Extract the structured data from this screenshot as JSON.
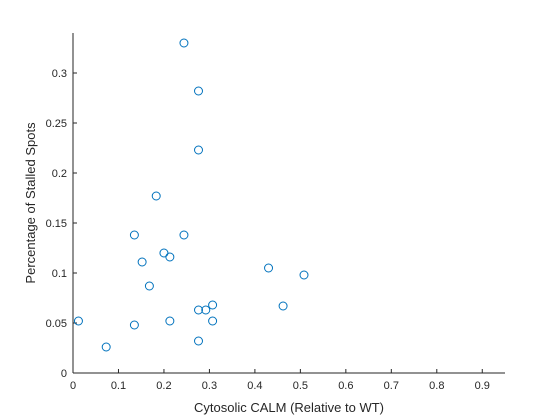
{
  "chart_data": {
    "type": "scatter",
    "xlabel": "Cytosolic CALM (Relative to WT)",
    "ylabel": "Percentage of Stalled Spots",
    "xlim": [
      0,
      0.95
    ],
    "ylim": [
      0,
      0.34
    ],
    "xticks": [
      0,
      0.1,
      0.2,
      0.3,
      0.4,
      0.5,
      0.6,
      0.7,
      0.8,
      0.9
    ],
    "xtick_labels": [
      "0",
      "0.1",
      "0.2",
      "0.3",
      "0.4",
      "0.5",
      "0.6",
      "0.7",
      "0.8",
      "0.9"
    ],
    "yticks": [
      0,
      0.05,
      0.1,
      0.15,
      0.2,
      0.25,
      0.3
    ],
    "ytick_labels": [
      "0",
      "0.05",
      "0.1",
      "0.15",
      "0.2",
      "0.25",
      "0.3"
    ],
    "grid": false,
    "marker_color": "#0072BD",
    "series": [
      {
        "marker": "circle-open",
        "points": [
          {
            "x": 0.012,
            "y": 0.052
          },
          {
            "x": 0.073,
            "y": 0.026
          },
          {
            "x": 0.135,
            "y": 0.138
          },
          {
            "x": 0.135,
            "y": 0.048
          },
          {
            "x": 0.152,
            "y": 0.111
          },
          {
            "x": 0.168,
            "y": 0.087
          },
          {
            "x": 0.183,
            "y": 0.177
          },
          {
            "x": 0.2,
            "y": 0.12
          },
          {
            "x": 0.213,
            "y": 0.116
          },
          {
            "x": 0.213,
            "y": 0.052
          },
          {
            "x": 0.244,
            "y": 0.33
          },
          {
            "x": 0.244,
            "y": 0.138
          },
          {
            "x": 0.276,
            "y": 0.282
          },
          {
            "x": 0.276,
            "y": 0.223
          },
          {
            "x": 0.276,
            "y": 0.063
          },
          {
            "x": 0.276,
            "y": 0.032
          },
          {
            "x": 0.292,
            "y": 0.063
          },
          {
            "x": 0.307,
            "y": 0.068
          },
          {
            "x": 0.307,
            "y": 0.052
          },
          {
            "x": 0.43,
            "y": 0.105
          },
          {
            "x": 0.462,
            "y": 0.067
          },
          {
            "x": 0.508,
            "y": 0.098
          }
        ]
      }
    ]
  }
}
